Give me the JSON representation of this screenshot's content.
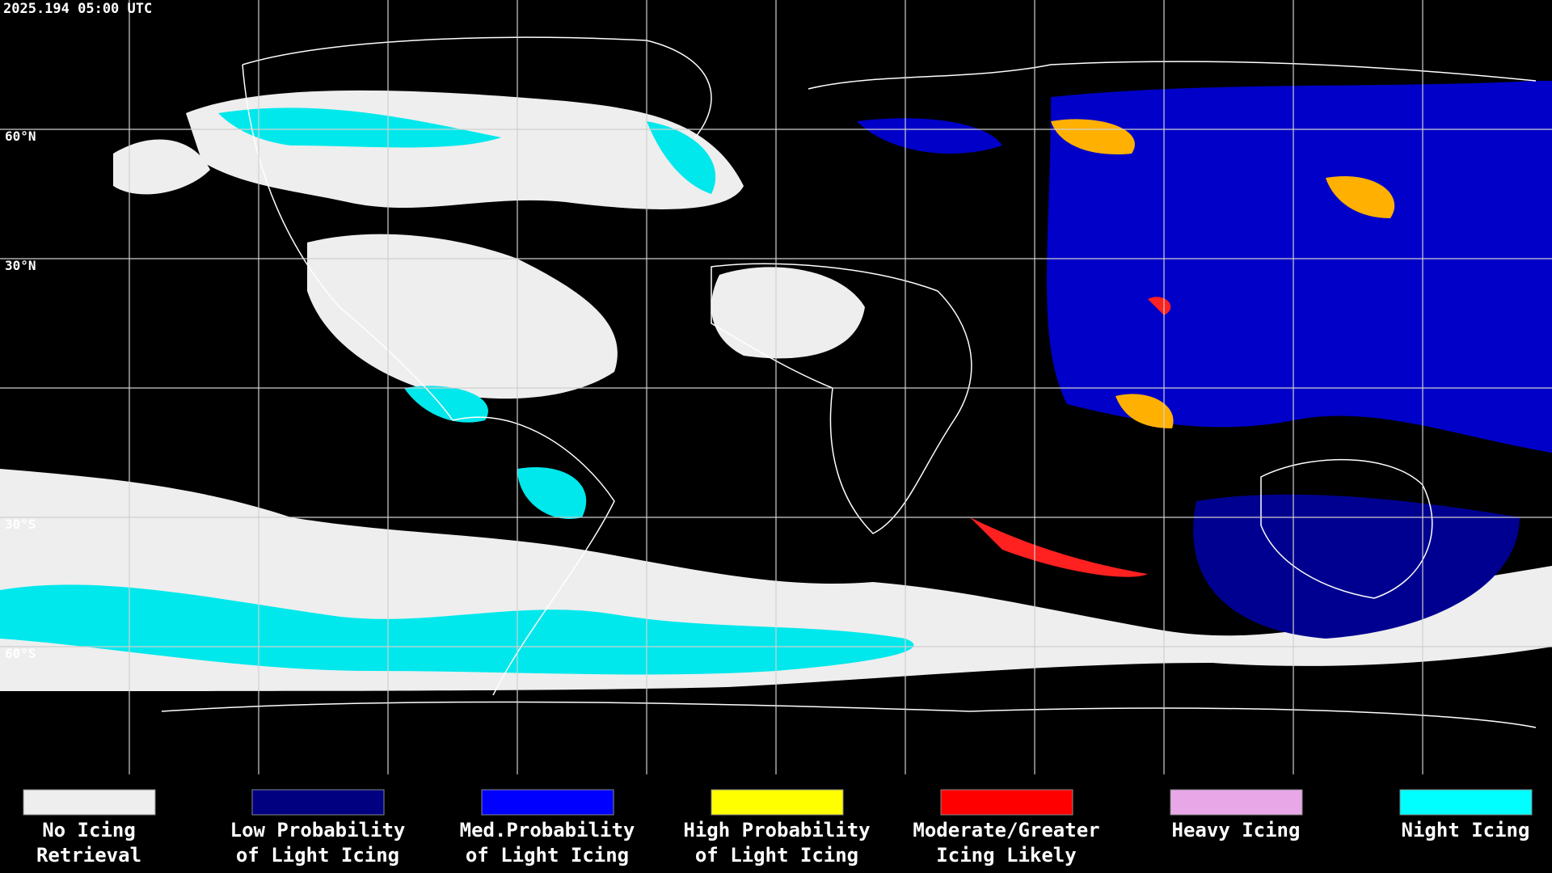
{
  "header": {
    "timestamp": "2025.194 05:00 UTC"
  },
  "latitude_labels": [
    "60°N",
    "30°N",
    "30°S",
    "60°S"
  ],
  "legend": [
    {
      "color": "#eeeeee",
      "lines": [
        "No Icing",
        "Retrieval"
      ]
    },
    {
      "color": "#000080",
      "lines": [
        "Low Probability",
        "of Light Icing"
      ]
    },
    {
      "color": "#0000ff",
      "lines": [
        "Med.Probability",
        "of Light Icing"
      ]
    },
    {
      "color": "#ffff00",
      "lines": [
        "High Probability",
        "of Light Icing"
      ]
    },
    {
      "color": "#ff0000",
      "lines": [
        "Moderate/Greater",
        "Icing Likely"
      ]
    },
    {
      "color": "#e8a8e8",
      "lines": [
        "Heavy Icing"
      ]
    },
    {
      "color": "#00ffff",
      "lines": [
        "Night Icing"
      ]
    }
  ]
}
